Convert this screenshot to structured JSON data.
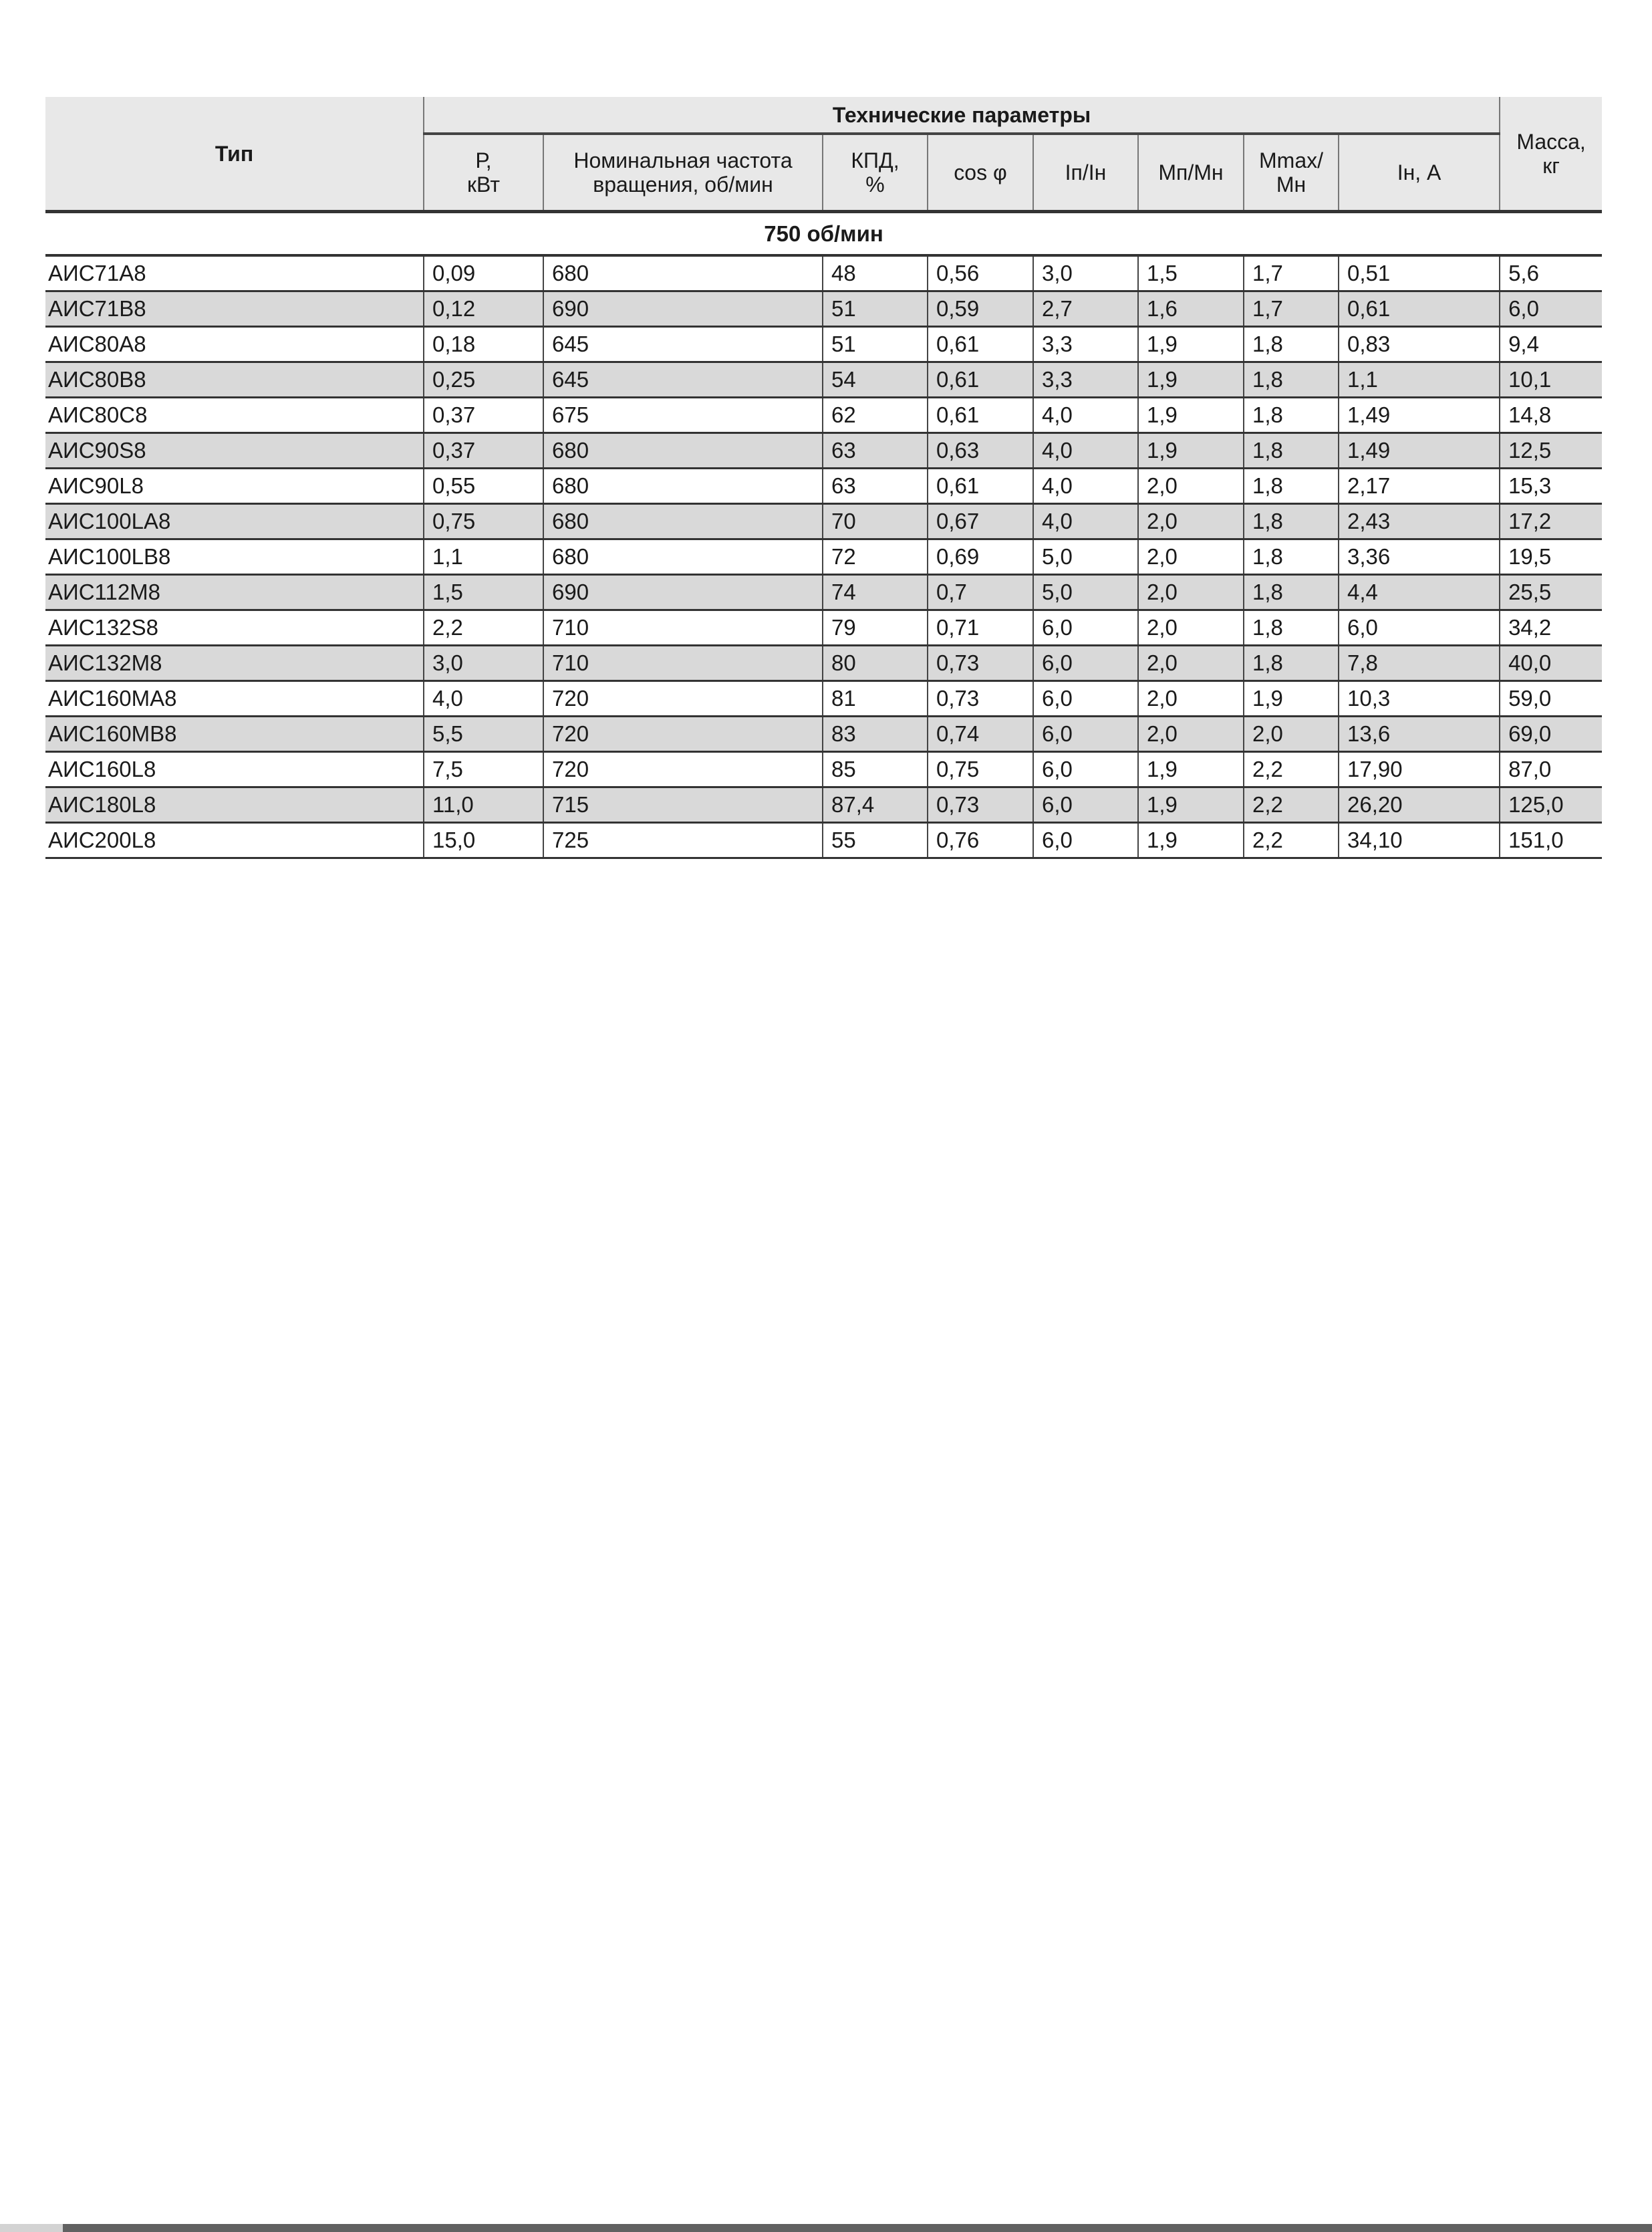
{
  "table": {
    "header": {
      "type": "Тип",
      "group": "Технические параметры",
      "columns": [
        "Р,\nкВт",
        "Номинальная частота\nвращения, об/мин",
        "КПД,\n%",
        "cos φ",
        "Iп/Iн",
        "Мп/Мн",
        "Mmax/\nМн",
        "Iн, А"
      ],
      "mass": "Масса,\nкг"
    },
    "section": "750 об/мин",
    "rows": [
      [
        "АИС71А8",
        "0,09",
        "680",
        "48",
        "0,56",
        "3,0",
        "1,5",
        "1,7",
        "0,51",
        "5,6"
      ],
      [
        "АИС71В8",
        "0,12",
        "690",
        "51",
        "0,59",
        "2,7",
        "1,6",
        "1,7",
        "0,61",
        "6,0"
      ],
      [
        "АИС80А8",
        "0,18",
        "645",
        "51",
        "0,61",
        "3,3",
        "1,9",
        "1,8",
        "0,83",
        "9,4"
      ],
      [
        "АИС80В8",
        "0,25",
        "645",
        "54",
        "0,61",
        "3,3",
        "1,9",
        "1,8",
        "1,1",
        "10,1"
      ],
      [
        "АИС80С8",
        "0,37",
        "675",
        "62",
        "0,61",
        "4,0",
        "1,9",
        "1,8",
        "1,49",
        "14,8"
      ],
      [
        "АИС90S8",
        "0,37",
        "680",
        "63",
        "0,63",
        "4,0",
        "1,9",
        "1,8",
        "1,49",
        "12,5"
      ],
      [
        "АИС90L8",
        "0,55",
        "680",
        "63",
        "0,61",
        "4,0",
        "2,0",
        "1,8",
        "2,17",
        "15,3"
      ],
      [
        "АИС100LA8",
        "0,75",
        "680",
        "70",
        "0,67",
        "4,0",
        "2,0",
        "1,8",
        "2,43",
        "17,2"
      ],
      [
        "АИС100LB8",
        "1,1",
        "680",
        "72",
        "0,69",
        "5,0",
        "2,0",
        "1,8",
        "3,36",
        "19,5"
      ],
      [
        "АИС112М8",
        "1,5",
        "690",
        "74",
        "0,7",
        "5,0",
        "2,0",
        "1,8",
        "4,4",
        "25,5"
      ],
      [
        "АИС132S8",
        "2,2",
        "710",
        "79",
        "0,71",
        "6,0",
        "2,0",
        "1,8",
        "6,0",
        "34,2"
      ],
      [
        "АИС132М8",
        "3,0",
        "710",
        "80",
        "0,73",
        "6,0",
        "2,0",
        "1,8",
        "7,8",
        "40,0"
      ],
      [
        "АИС160МА8",
        "4,0",
        "720",
        "81",
        "0,73",
        "6,0",
        "2,0",
        "1,9",
        "10,3",
        "59,0"
      ],
      [
        "АИС160МВ8",
        "5,5",
        "720",
        "83",
        "0,74",
        "6,0",
        "2,0",
        "2,0",
        "13,6",
        "69,0"
      ],
      [
        "АИС160L8",
        "7,5",
        "720",
        "85",
        "0,75",
        "6,0",
        "1,9",
        "2,2",
        "17,90",
        "87,0"
      ],
      [
        "АИС180L8",
        "11,0",
        "715",
        "87,4",
        "0,73",
        "6,0",
        "1,9",
        "2,2",
        "26,20",
        "125,0"
      ],
      [
        "АИС200L8",
        "15,0",
        "725",
        "55",
        "0,76",
        "6,0",
        "1,9",
        "2,2",
        "34,10",
        "151,0"
      ]
    ]
  }
}
